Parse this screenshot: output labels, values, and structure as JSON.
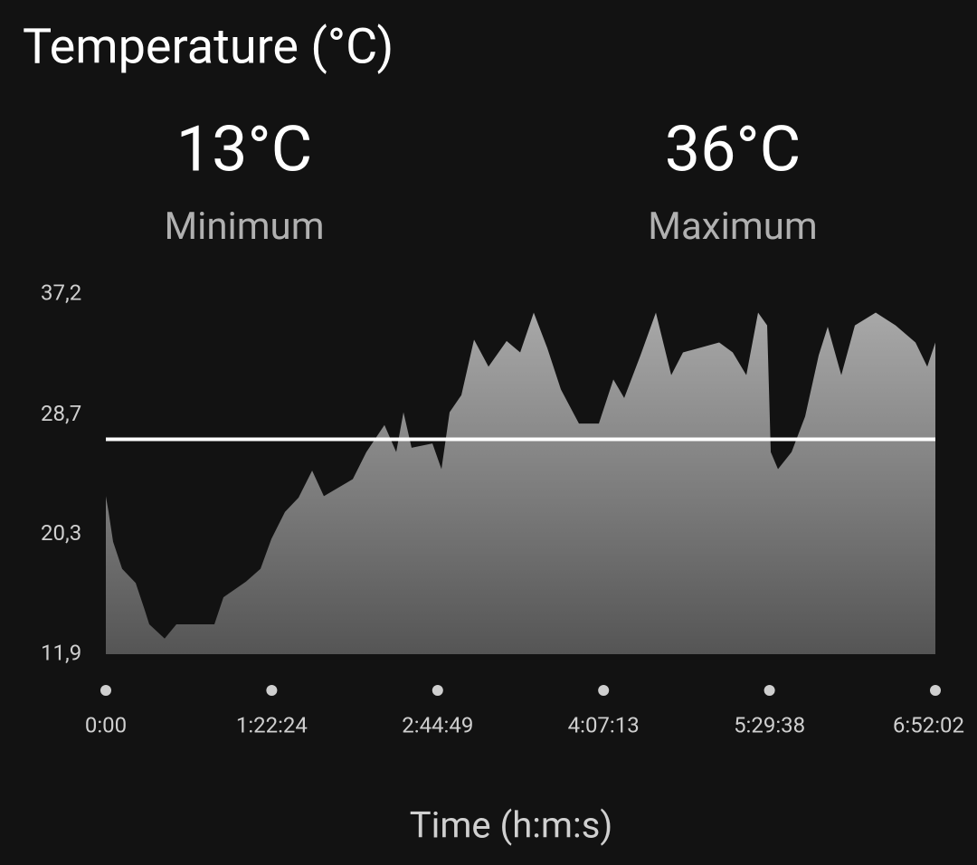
{
  "chart_data": {
    "type": "area",
    "title": "Temperature (°C)",
    "stats": [
      {
        "value": "13°C",
        "label": "Minimum"
      },
      {
        "value": "36°C",
        "label": "Maximum"
      }
    ],
    "x_label": "Time (h:m:s)",
    "x": [
      0,
      81,
      216,
      485,
      890,
      1159,
      1294,
      1752,
      2103,
      3235,
      3505,
      4179,
      4610,
      4934,
      5339,
      5743,
      6148,
      6497,
      7360,
      7764,
      8303,
      8654,
      8870,
      9112,
      9733,
      10002,
      10245,
      10595,
      10973,
      11404,
      11944,
      12348,
      12752,
      13157,
      13561,
      14100,
      14693,
      15125,
      15448,
      15934,
      16392,
      16850,
      17200,
      18279,
      18683,
      19088,
      19438,
      19708,
      19816,
      20031,
      20436,
      20840,
      21245,
      21514,
      21918,
      22323,
      22943,
      23536,
      24129,
      24480,
      24722
    ],
    "values": [
      23.0,
      21.9,
      19.8,
      17.9,
      16.9,
      15.0,
      14.0,
      13.0,
      14.0,
      14.0,
      15.9,
      17.0,
      17.9,
      20.0,
      21.9,
      22.9,
      24.8,
      23.0,
      24.2,
      26.1,
      28.0,
      26.1,
      28.9,
      26.4,
      26.7,
      24.9,
      28.9,
      30.1,
      34.0,
      32.1,
      33.9,
      33.1,
      35.9,
      33.4,
      30.5,
      28.1,
      28.1,
      31.2,
      29.9,
      32.9,
      35.9,
      31.5,
      33.1,
      33.8,
      33.1,
      31.5,
      35.9,
      35.0,
      26.1,
      24.9,
      26.1,
      28.6,
      32.9,
      34.9,
      31.5,
      35.0,
      35.9,
      35.0,
      33.8,
      32.1,
      33.8
    ],
    "mean_line": 27.0,
    "xlim": [
      0,
      24722
    ],
    "xticks": [
      {
        "value": 0,
        "label": "0:00"
      },
      {
        "value": 4944,
        "label": "1:22:24"
      },
      {
        "value": 9889,
        "label": "2:44:49"
      },
      {
        "value": 14833,
        "label": "4:07:13"
      },
      {
        "value": 19778,
        "label": "5:29:38"
      },
      {
        "value": 24722,
        "label": "6:52:02"
      }
    ],
    "ylim": [
      11.9,
      37.2
    ],
    "yticks": [
      {
        "value": 11.9,
        "label": "11,9"
      },
      {
        "value": 20.3,
        "label": "20,3"
      },
      {
        "value": 28.7,
        "label": "28,7"
      },
      {
        "value": 37.2,
        "label": "37,2"
      }
    ],
    "color": "#9e9e9e",
    "line_color": "#ffffff"
  }
}
